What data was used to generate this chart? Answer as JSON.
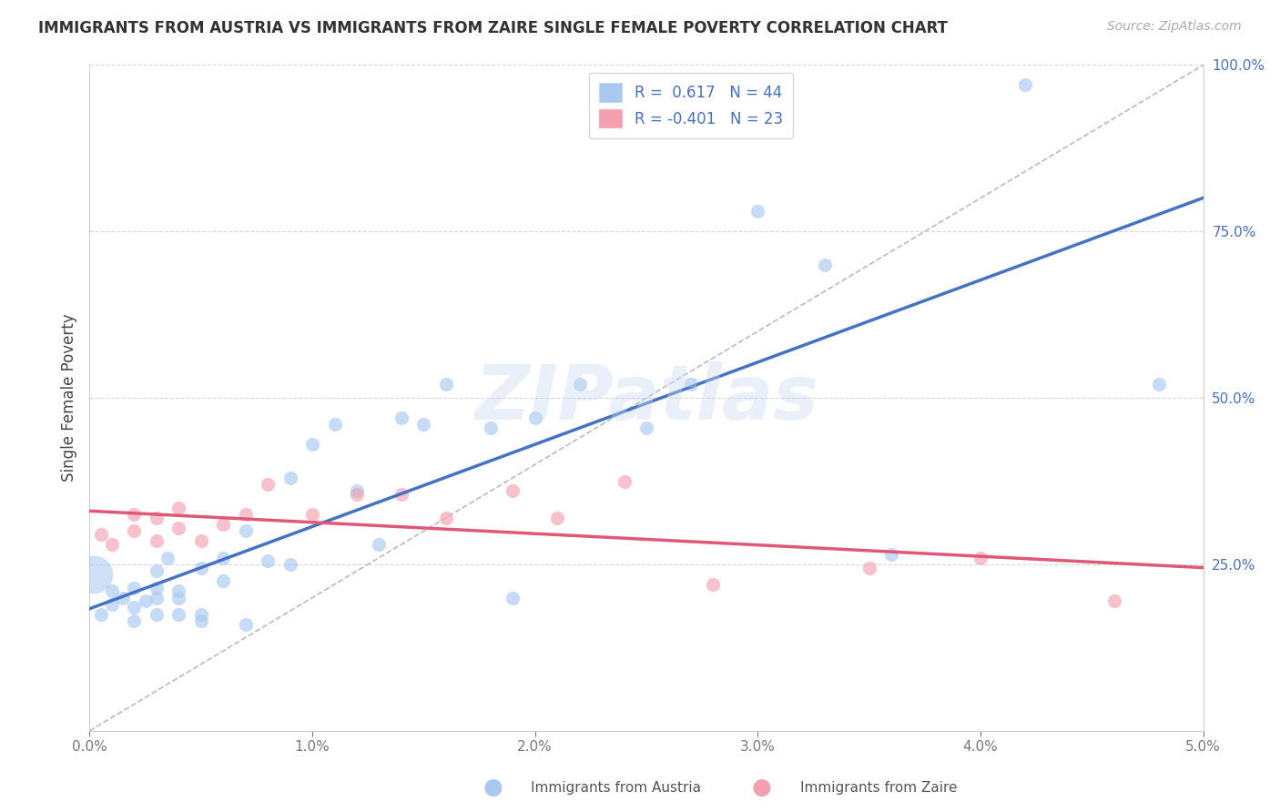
{
  "title": "IMMIGRANTS FROM AUSTRIA VS IMMIGRANTS FROM ZAIRE SINGLE FEMALE POVERTY CORRELATION CHART",
  "source": "Source: ZipAtlas.com",
  "ylabel": "Single Female Poverty",
  "legend_austria": "Immigrants from Austria",
  "legend_zaire": "Immigrants from Zaire",
  "R_austria": 0.617,
  "N_austria": 44,
  "R_zaire": -0.401,
  "N_zaire": 23,
  "austria_x": [
    0.0005,
    0.001,
    0.001,
    0.0015,
    0.002,
    0.002,
    0.002,
    0.0025,
    0.003,
    0.003,
    0.003,
    0.003,
    0.0035,
    0.004,
    0.004,
    0.004,
    0.005,
    0.005,
    0.005,
    0.006,
    0.006,
    0.007,
    0.007,
    0.008,
    0.009,
    0.009,
    0.01,
    0.011,
    0.012,
    0.013,
    0.014,
    0.015,
    0.016,
    0.018,
    0.019,
    0.02,
    0.022,
    0.025,
    0.027,
    0.03,
    0.033,
    0.036,
    0.042,
    0.048
  ],
  "austria_y": [
    0.175,
    0.19,
    0.21,
    0.2,
    0.185,
    0.215,
    0.165,
    0.195,
    0.2,
    0.215,
    0.24,
    0.175,
    0.26,
    0.21,
    0.175,
    0.2,
    0.245,
    0.165,
    0.175,
    0.26,
    0.225,
    0.16,
    0.3,
    0.255,
    0.25,
    0.38,
    0.43,
    0.46,
    0.36,
    0.28,
    0.47,
    0.46,
    0.52,
    0.455,
    0.2,
    0.47,
    0.52,
    0.455,
    0.52,
    0.78,
    0.7,
    0.265,
    0.97,
    0.52
  ],
  "zaire_x": [
    0.0005,
    0.001,
    0.002,
    0.002,
    0.003,
    0.003,
    0.004,
    0.004,
    0.005,
    0.006,
    0.007,
    0.008,
    0.01,
    0.012,
    0.014,
    0.016,
    0.019,
    0.021,
    0.024,
    0.028,
    0.035,
    0.04,
    0.046
  ],
  "zaire_y": [
    0.295,
    0.28,
    0.3,
    0.325,
    0.285,
    0.32,
    0.305,
    0.335,
    0.285,
    0.31,
    0.325,
    0.37,
    0.325,
    0.355,
    0.355,
    0.32,
    0.36,
    0.32,
    0.375,
    0.22,
    0.245,
    0.26,
    0.195
  ],
  "austria_color": "#a8c8f0",
  "zaire_color": "#f5a0b0",
  "austria_line_color": "#4472c4",
  "zaire_line_color": "#e05878",
  "grid_color": "#d8d8d8",
  "watermark_text": "ZIPatlas",
  "watermark_color": "#c8daf0",
  "bg_color": "#ffffff",
  "xlim": [
    0.0,
    0.05
  ],
  "ylim": [
    0.0,
    1.0
  ],
  "xticks": [
    0.0,
    0.01,
    0.02,
    0.03,
    0.04,
    0.05
  ],
  "xticklabels": [
    "0.0%",
    "1.0%",
    "2.0%",
    "3.0%",
    "4.0%",
    "5.0%"
  ],
  "yticks_right": [
    0.25,
    0.5,
    0.75,
    1.0
  ],
  "yticklabels_right": [
    "25.0%",
    "50.0%",
    "75.0%",
    "100.0%"
  ],
  "scatter_size": 120
}
